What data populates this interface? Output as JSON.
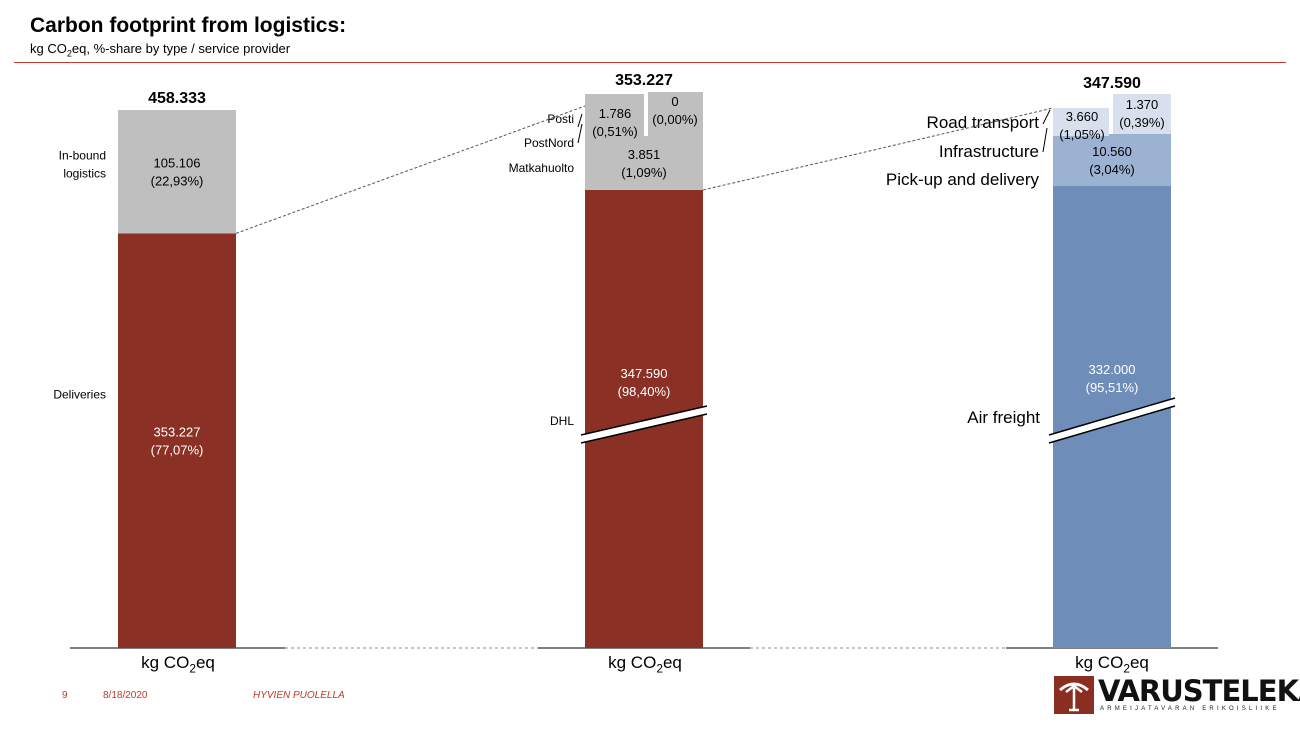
{
  "header": {
    "title": "Carbon footprint from logistics:",
    "subtitle_pre": "kg CO",
    "subtitle_sub": "2",
    "subtitle_post": "eq, %-share by type / service provider"
  },
  "footer": {
    "page": "9",
    "date": "8/18/2020",
    "note": "HYVIEN PUOLELLA"
  },
  "logo": {
    "text": "VARUSTELEKA.FI",
    "tagline": "ARMEIJATAVARAN ERIKOISLIIKE"
  },
  "axis_unit": {
    "pre": "kg CO",
    "sub": "2",
    "post": "eq"
  },
  "colors": {
    "deliveries": "#8b3024",
    "inbound": "#bfbfbf",
    "air": "#6e8eb9",
    "pickup": "#9cb2d3",
    "infra_road": "#d8e0ee",
    "accent_rule": "#c0392b"
  },
  "chart_data": [
    {
      "type": "bar",
      "stacked": true,
      "total": "458.333",
      "segments": [
        {
          "label": "Deliveries",
          "value": 353227,
          "value_text": "353.227",
          "pct_text": "(77,07%)"
        },
        {
          "label": "In-bound logistics",
          "value": 105106,
          "value_text": "105.106",
          "pct_text": "(22,93%)"
        }
      ]
    },
    {
      "type": "bar",
      "stacked": true,
      "total": "353.227",
      "axis_break": true,
      "segments": [
        {
          "label": "DHL",
          "value": 347590,
          "value_text": "347.590",
          "pct_text": "(98,40%)"
        },
        {
          "label": "Matkahuolto",
          "value": 3851,
          "value_text": "3.851",
          "pct_text": "(1,09%)"
        },
        {
          "label": "PostNord",
          "value": 1786,
          "value_text": "1.786",
          "pct_text": "(0,51%)"
        },
        {
          "label": "Posti",
          "value": 0,
          "value_text": "0",
          "pct_text": "(0,00%)"
        }
      ]
    },
    {
      "type": "bar",
      "stacked": true,
      "total": "347.590",
      "axis_break": true,
      "segments": [
        {
          "label": "Air freight",
          "value": 332000,
          "value_text": "332.000",
          "pct_text": "(95,51%)"
        },
        {
          "label": "Pick-up and delivery",
          "value": 10560,
          "value_text": "10.560",
          "pct_text": "(3,04%)"
        },
        {
          "label": "Infrastructure",
          "value": 3660,
          "value_text": "3.660",
          "pct_text": "(1,05%)"
        },
        {
          "label": "Road transport",
          "value": 1370,
          "value_text": "1.370",
          "pct_text": "(0,39%)"
        }
      ]
    }
  ]
}
